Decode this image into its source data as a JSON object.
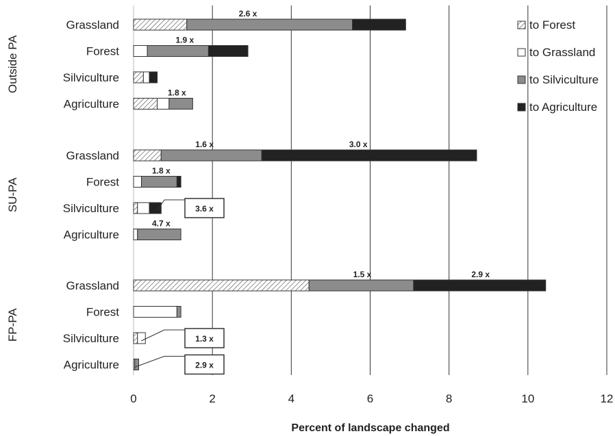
{
  "chart_data": {
    "type": "bar",
    "orientation": "horizontal",
    "stacked": true,
    "xlabel": "Percent of landscape changed",
    "xlim": [
      0,
      12
    ],
    "xticks": [
      0,
      2,
      4,
      6,
      8,
      10,
      12
    ],
    "grid": "vertical",
    "legend_position": "top-right",
    "series": [
      {
        "name": "to Forest",
        "pattern": "hatched",
        "color": "#ffffff"
      },
      {
        "name": "to Grassland",
        "pattern": "solid",
        "color": "#ffffff"
      },
      {
        "name": "to Silviculture",
        "pattern": "solid",
        "color": "#8c8c8c"
      },
      {
        "name": "to Agriculture",
        "pattern": "solid",
        "color": "#222222"
      }
    ],
    "groups": [
      {
        "name": "Outside PA",
        "categories": [
          {
            "name": "Grassland",
            "values": [
              1.35,
              0,
              4.2,
              1.35
            ],
            "annotations": [
              {
                "text": "2.6 x",
                "boxed": false,
                "at": 2.9
              }
            ]
          },
          {
            "name": "Forest",
            "values": [
              0,
              0.35,
              1.55,
              1.0
            ],
            "annotations": [
              {
                "text": "1.9 x",
                "boxed": false,
                "at": 1.3
              }
            ]
          },
          {
            "name": "Silviculture",
            "values": [
              0.25,
              0.15,
              0,
              0.2
            ],
            "annotations": []
          },
          {
            "name": "Agriculture",
            "values": [
              0.6,
              0.3,
              0.6,
              0
            ],
            "annotations": [
              {
                "text": "1.8 x",
                "boxed": false,
                "at": 1.1
              }
            ]
          }
        ]
      },
      {
        "name": "SU-PA",
        "categories": [
          {
            "name": "Grassland",
            "values": [
              0.7,
              0,
              2.55,
              5.45
            ],
            "annotations": [
              {
                "text": "1.6 x",
                "boxed": false,
                "at": 1.8
              },
              {
                "text": "3.0 x",
                "boxed": false,
                "at": 5.7
              }
            ]
          },
          {
            "name": "Forest",
            "values": [
              0,
              0.2,
              0.9,
              0.1
            ],
            "annotations": [
              {
                "text": "1.8 x",
                "boxed": false,
                "at": 0.7
              }
            ]
          },
          {
            "name": "Silviculture",
            "values": [
              0.1,
              0.3,
              0,
              0.3
            ],
            "annotations": [
              {
                "text": "3.6 x",
                "boxed": true,
                "at": 0.4
              }
            ]
          },
          {
            "name": "Agriculture",
            "values": [
              0,
              0.1,
              1.1,
              0
            ],
            "annotations": [
              {
                "text": "4.7 x",
                "boxed": false,
                "at": 0.7
              }
            ]
          }
        ]
      },
      {
        "name": "FP-PA",
        "categories": [
          {
            "name": "Grassland",
            "values": [
              4.45,
              0,
              2.65,
              3.35
            ],
            "annotations": [
              {
                "text": "1.5 x",
                "boxed": false,
                "at": 5.8
              },
              {
                "text": "2.9 x",
                "boxed": false,
                "at": 8.8
              }
            ]
          },
          {
            "name": "Forest",
            "values": [
              0,
              1.1,
              0.1,
              0
            ],
            "annotations": []
          },
          {
            "name": "Silviculture",
            "values": [
              0.1,
              0.2,
              0,
              0
            ],
            "annotations": [
              {
                "text": "1.3 x",
                "boxed": true,
                "at": 0.2
              }
            ]
          },
          {
            "name": "Agriculture",
            "values": [
              0,
              0.03,
              0.1,
              0
            ],
            "annotations": [
              {
                "text": "2.9 x",
                "boxed": true,
                "at": 0.1
              }
            ]
          }
        ]
      }
    ]
  }
}
